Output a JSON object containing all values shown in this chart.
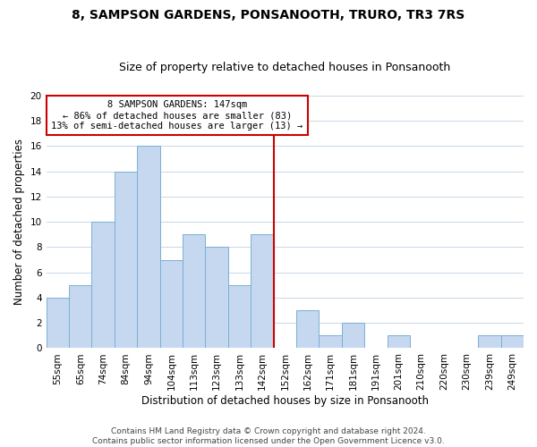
{
  "title": "8, SAMPSON GARDENS, PONSANOOTH, TRURO, TR3 7RS",
  "subtitle": "Size of property relative to detached houses in Ponsanooth",
  "xlabel": "Distribution of detached houses by size in Ponsanooth",
  "ylabel": "Number of detached properties",
  "bar_color": "#c5d8f0",
  "bar_edge_color": "#7bafd4",
  "categories": [
    "55sqm",
    "65sqm",
    "74sqm",
    "84sqm",
    "94sqm",
    "104sqm",
    "113sqm",
    "123sqm",
    "133sqm",
    "142sqm",
    "152sqm",
    "162sqm",
    "171sqm",
    "181sqm",
    "191sqm",
    "201sqm",
    "210sqm",
    "220sqm",
    "230sqm",
    "239sqm",
    "249sqm"
  ],
  "values": [
    4,
    5,
    10,
    14,
    16,
    7,
    9,
    8,
    5,
    9,
    0,
    3,
    1,
    2,
    0,
    1,
    0,
    0,
    0,
    1,
    1
  ],
  "ylim": [
    0,
    20
  ],
  "yticks": [
    0,
    2,
    4,
    6,
    8,
    10,
    12,
    14,
    16,
    18,
    20
  ],
  "vline_color": "#cc0000",
  "annotation_title": "8 SAMPSON GARDENS: 147sqm",
  "annotation_line1": "← 86% of detached houses are smaller (83)",
  "annotation_line2": "13% of semi-detached houses are larger (13) →",
  "annotation_box_color": "#ffffff",
  "annotation_box_edge": "#cc0000",
  "footer1": "Contains HM Land Registry data © Crown copyright and database right 2024.",
  "footer2": "Contains public sector information licensed under the Open Government Licence v3.0.",
  "background_color": "#ffffff",
  "grid_color": "#c8d8e8",
  "title_fontsize": 10,
  "subtitle_fontsize": 9,
  "label_fontsize": 8.5,
  "tick_fontsize": 7.5,
  "footer_fontsize": 6.5
}
